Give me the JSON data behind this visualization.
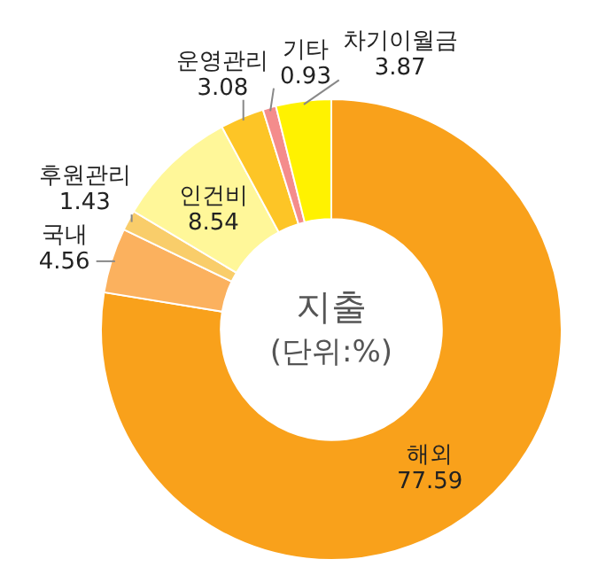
{
  "chart_data": {
    "type": "donut",
    "title": "지출",
    "subtitle": "(단위:%)",
    "categories": [
      "해외",
      "국내",
      "후원관리",
      "인건비",
      "운영관리",
      "기타",
      "차기이월금"
    ],
    "values": [
      77.59,
      4.56,
      1.43,
      8.54,
      3.08,
      0.93,
      3.87
    ],
    "colors": [
      "#f9a11b",
      "#fbb15e",
      "#f9cd6a",
      "#fff799",
      "#fdc526",
      "#f48c8c",
      "#fff200"
    ],
    "data_labels": true
  }
}
